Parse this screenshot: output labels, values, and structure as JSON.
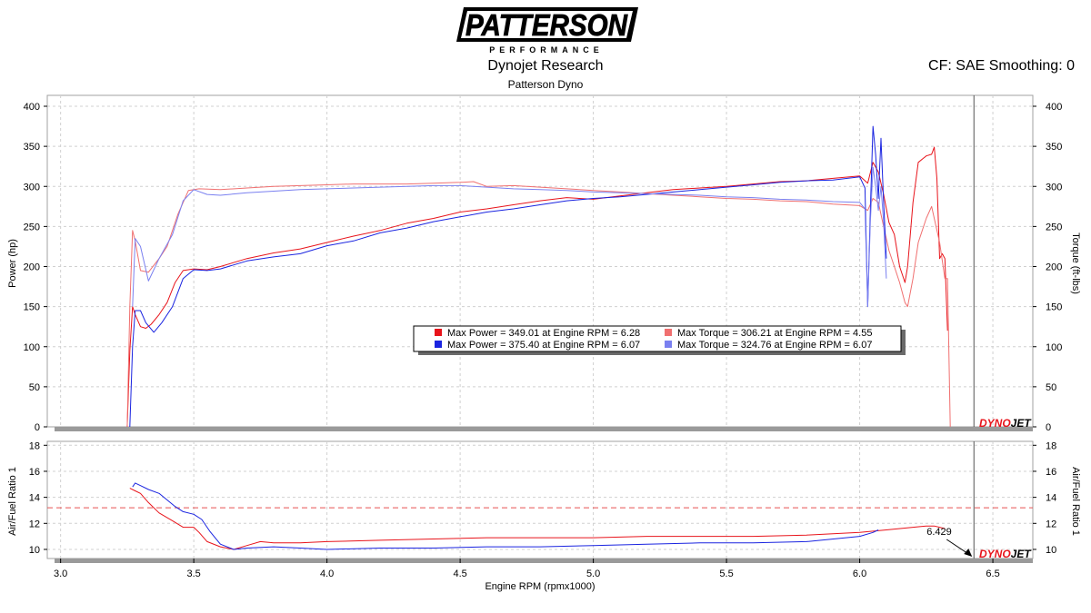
{
  "header": {
    "logo_text": "PATTERSON",
    "logo_subtext": "PERFORMANCE",
    "company": "Dynojet Research",
    "dyno_name": "Patterson Dyno",
    "correction": "CF: SAE Smoothing: 0"
  },
  "brand_mark": {
    "dyno": "DYNO",
    "jet": "JET"
  },
  "colors": {
    "run1": "#e8141b",
    "run2": "#1a24e0",
    "run1_torque": "#f07070",
    "run2_torque": "#7a80f0",
    "afr_target": "#e85050",
    "cursor": "#555555"
  },
  "legend": [
    {
      "swatch": "#e8141b",
      "text": "Max Power = 349.01 at Engine RPM = 6.28"
    },
    {
      "swatch": "#f07070",
      "text": "Max Torque = 306.21 at Engine RPM = 4.55"
    },
    {
      "swatch": "#1a24e0",
      "text": "Max Power = 375.40 at Engine RPM = 6.07"
    },
    {
      "swatch": "#7a80f0",
      "text": "Max Torque = 324.76 at Engine RPM = 6.07"
    }
  ],
  "cursor": {
    "rpm": 6.429,
    "label": "6.429"
  },
  "chart_data": [
    {
      "type": "line",
      "title": "",
      "xlabel": "",
      "ylabel": "Power (hp)",
      "ylabel_right": "Torque (ft-lbs)",
      "xlim": [
        2.95,
        6.65
      ],
      "ylim": [
        0,
        400
      ],
      "yticks": [
        0,
        50,
        100,
        150,
        200,
        250,
        300,
        350,
        400
      ],
      "grid": true,
      "series": [
        {
          "name": "",
          "color": "#e8141b",
          "width": 1.0,
          "x": [
            3.25,
            3.26,
            3.27,
            3.28,
            3.3,
            3.32,
            3.34,
            3.37,
            3.4,
            3.43,
            3.46,
            3.5,
            3.55,
            3.6,
            3.7,
            3.8,
            3.9,
            4.0,
            4.1,
            4.2,
            4.3,
            4.4,
            4.5,
            4.6,
            4.7,
            4.8,
            4.9,
            5.0,
            5.1,
            5.2,
            5.3,
            5.4,
            5.5,
            5.6,
            5.7,
            5.8,
            5.9,
            6.0,
            6.03,
            6.05,
            6.07,
            6.09,
            6.11,
            6.13,
            6.15,
            6.17,
            6.18,
            6.2,
            6.22,
            6.25,
            6.27,
            6.28,
            6.29,
            6.3,
            6.31,
            6.32,
            6.33
          ],
          "y": [
            0,
            95,
            150,
            140,
            125,
            123,
            128,
            140,
            155,
            180,
            195,
            197,
            196,
            200,
            210,
            217,
            222,
            230,
            238,
            245,
            254,
            260,
            268,
            272,
            277,
            282,
            286,
            284,
            288,
            292,
            296,
            298,
            300,
            303,
            306,
            307,
            310,
            313,
            304,
            330,
            318,
            290,
            255,
            240,
            200,
            180,
            200,
            280,
            330,
            338,
            340,
            349,
            310,
            210,
            216,
            210,
            120
          ]
        },
        {
          "name": "",
          "color": "#f07070",
          "width": 1.0,
          "x": [
            3.25,
            3.26,
            3.27,
            3.28,
            3.3,
            3.33,
            3.37,
            3.4,
            3.44,
            3.48,
            3.52,
            3.6,
            3.7,
            3.8,
            3.9,
            4.0,
            4.1,
            4.2,
            4.3,
            4.4,
            4.5,
            4.55,
            4.6,
            4.7,
            4.8,
            4.9,
            5.0,
            5.1,
            5.2,
            5.3,
            5.4,
            5.5,
            5.6,
            5.7,
            5.8,
            5.9,
            6.0,
            6.03,
            6.05,
            6.07,
            6.09,
            6.11,
            6.13,
            6.15,
            6.17,
            6.18,
            6.2,
            6.22,
            6.25,
            6.27,
            6.28,
            6.3,
            6.32,
            6.33,
            6.34
          ],
          "y": [
            0,
            150,
            245,
            232,
            195,
            193,
            210,
            225,
            265,
            295,
            297,
            296,
            298,
            300,
            301,
            302,
            303,
            303,
            303,
            304,
            305,
            306,
            300,
            301,
            299,
            297,
            295,
            293,
            291,
            289,
            287,
            285,
            284,
            282,
            281,
            278,
            276,
            270,
            285,
            280,
            250,
            220,
            200,
            180,
            155,
            150,
            185,
            230,
            260,
            275,
            260,
            230,
            185,
            185,
            0
          ]
        },
        {
          "name": "",
          "color": "#1a24e0",
          "width": 1.0,
          "x": [
            3.26,
            3.27,
            3.28,
            3.3,
            3.32,
            3.35,
            3.38,
            3.42,
            3.46,
            3.5,
            3.55,
            3.6,
            3.7,
            3.8,
            3.9,
            4.0,
            4.1,
            4.2,
            4.3,
            4.4,
            4.5,
            4.6,
            4.7,
            4.8,
            4.9,
            5.0,
            5.1,
            5.2,
            5.3,
            5.4,
            5.5,
            5.6,
            5.7,
            5.8,
            5.9,
            6.0,
            6.02,
            6.03,
            6.04,
            6.05,
            6.06,
            6.07,
            6.08,
            6.09,
            6.1
          ],
          "y": [
            0,
            100,
            145,
            145,
            130,
            118,
            130,
            150,
            185,
            196,
            195,
            197,
            207,
            212,
            216,
            226,
            232,
            242,
            248,
            256,
            262,
            268,
            272,
            277,
            282,
            285,
            287,
            290,
            293,
            296,
            299,
            302,
            305,
            307,
            308,
            312,
            298,
            150,
            270,
            375,
            340,
            285,
            360,
            280,
            210
          ]
        },
        {
          "name": "",
          "color": "#7a80f0",
          "width": 1.0,
          "x": [
            3.27,
            3.28,
            3.3,
            3.33,
            3.37,
            3.42,
            3.46,
            3.5,
            3.55,
            3.6,
            3.7,
            3.8,
            3.9,
            4.0,
            4.1,
            4.2,
            4.3,
            4.4,
            4.5,
            4.6,
            4.7,
            4.8,
            4.9,
            5.0,
            5.1,
            5.2,
            5.3,
            5.4,
            5.5,
            5.6,
            5.7,
            5.8,
            5.9,
            6.0,
            6.02,
            6.03,
            6.04,
            6.05,
            6.06,
            6.07,
            6.08,
            6.09,
            6.1
          ],
          "y": [
            150,
            235,
            225,
            182,
            210,
            240,
            282,
            296,
            290,
            289,
            292,
            294,
            296,
            297,
            298,
            299,
            300,
            301,
            301,
            299,
            297,
            296,
            295,
            293,
            292,
            291,
            290,
            289,
            287,
            286,
            284,
            283,
            281,
            280,
            272,
            150,
            255,
            324,
            300,
            270,
            300,
            255,
            185
          ]
        }
      ]
    },
    {
      "type": "line",
      "title": "",
      "xlabel": "Engine RPM (rpmx1000)",
      "ylabel": "Air/Fuel Ratio 1",
      "ylabel_right": "Air/Fuel Ratio 1",
      "xlim": [
        2.95,
        6.65
      ],
      "ylim": [
        9.3,
        18.3
      ],
      "xticks": [
        3.0,
        3.5,
        4.0,
        4.5,
        5.0,
        5.5,
        6.0,
        6.5
      ],
      "xtick_labels": [
        "3.0",
        "3.5",
        "4.0",
        "4.5",
        "5.0",
        "5.5",
        "6.0",
        "6.5"
      ],
      "yticks": [
        10,
        12,
        14,
        16,
        18
      ],
      "target_line": 13.2,
      "grid": true,
      "series": [
        {
          "name": "",
          "color": "#e8141b",
          "width": 1.0,
          "x": [
            3.26,
            3.28,
            3.3,
            3.33,
            3.37,
            3.42,
            3.46,
            3.5,
            3.52,
            3.55,
            3.6,
            3.65,
            3.7,
            3.75,
            3.8,
            3.9,
            4.0,
            4.2,
            4.4,
            4.6,
            4.8,
            5.0,
            5.2,
            5.4,
            5.6,
            5.8,
            6.0,
            6.1,
            6.2,
            6.25,
            6.28,
            6.3,
            6.32
          ],
          "y": [
            14.7,
            14.5,
            14.3,
            13.6,
            12.8,
            12.2,
            11.7,
            11.7,
            11.3,
            10.6,
            10.2,
            10.0,
            10.3,
            10.6,
            10.5,
            10.5,
            10.6,
            10.7,
            10.8,
            10.9,
            10.9,
            10.9,
            11.0,
            11.0,
            11.0,
            11.1,
            11.3,
            11.5,
            11.7,
            11.8,
            11.8,
            11.7,
            11.6
          ]
        },
        {
          "name": "",
          "color": "#1a24e0",
          "width": 1.0,
          "x": [
            3.27,
            3.28,
            3.3,
            3.33,
            3.37,
            3.4,
            3.43,
            3.46,
            3.5,
            3.53,
            3.56,
            3.6,
            3.65,
            3.7,
            3.8,
            3.9,
            4.0,
            4.2,
            4.4,
            4.6,
            4.8,
            5.0,
            5.2,
            5.4,
            5.6,
            5.8,
            6.0,
            6.05,
            6.07
          ],
          "y": [
            14.8,
            15.1,
            14.9,
            14.6,
            14.3,
            13.8,
            13.3,
            12.9,
            12.7,
            12.3,
            11.4,
            10.4,
            10.0,
            10.1,
            10.2,
            10.1,
            10.0,
            10.1,
            10.1,
            10.2,
            10.2,
            10.3,
            10.4,
            10.5,
            10.5,
            10.6,
            11.0,
            11.3,
            11.5
          ]
        }
      ]
    }
  ]
}
